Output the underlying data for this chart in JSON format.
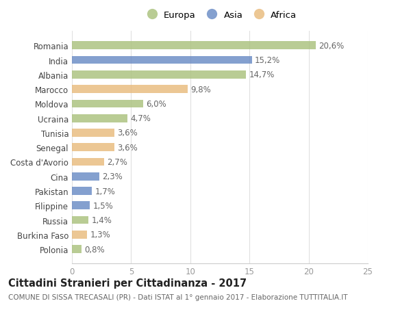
{
  "categories": [
    "Romania",
    "India",
    "Albania",
    "Marocco",
    "Moldova",
    "Ucraina",
    "Tunisia",
    "Senegal",
    "Costa d'Avorio",
    "Cina",
    "Pakistan",
    "Filippine",
    "Russia",
    "Burkina Faso",
    "Polonia"
  ],
  "values": [
    20.6,
    15.2,
    14.7,
    9.8,
    6.0,
    4.7,
    3.6,
    3.6,
    2.7,
    2.3,
    1.7,
    1.5,
    1.4,
    1.3,
    0.8
  ],
  "labels": [
    "20,6%",
    "15,2%",
    "14,7%",
    "9,8%",
    "6,0%",
    "4,7%",
    "3,6%",
    "3,6%",
    "2,7%",
    "2,3%",
    "1,7%",
    "1,5%",
    "1,4%",
    "1,3%",
    "0,8%"
  ],
  "continents": [
    "Europa",
    "Asia",
    "Europa",
    "Africa",
    "Europa",
    "Europa",
    "Africa",
    "Africa",
    "Africa",
    "Asia",
    "Asia",
    "Asia",
    "Europa",
    "Africa",
    "Europa"
  ],
  "colors": {
    "Europa": "#a8c07a",
    "Asia": "#6688c3",
    "Africa": "#e8b97a"
  },
  "xlim": [
    0,
    25
  ],
  "xticks": [
    0,
    5,
    10,
    15,
    20,
    25
  ],
  "title": "Cittadini Stranieri per Cittadinanza - 2017",
  "subtitle": "COMUNE DI SISSA TRECASALI (PR) - Dati ISTAT al 1° gennaio 2017 - Elaborazione TUTTITALIA.IT",
  "bg_color": "#ffffff",
  "grid_color": "#e0e0e0",
  "bar_height": 0.55,
  "bar_alpha": 0.8,
  "title_fontsize": 10.5,
  "subtitle_fontsize": 7.5,
  "ytick_fontsize": 8.5,
  "xtick_fontsize": 8.5,
  "label_fontsize": 8.5,
  "legend_fontsize": 9.5
}
